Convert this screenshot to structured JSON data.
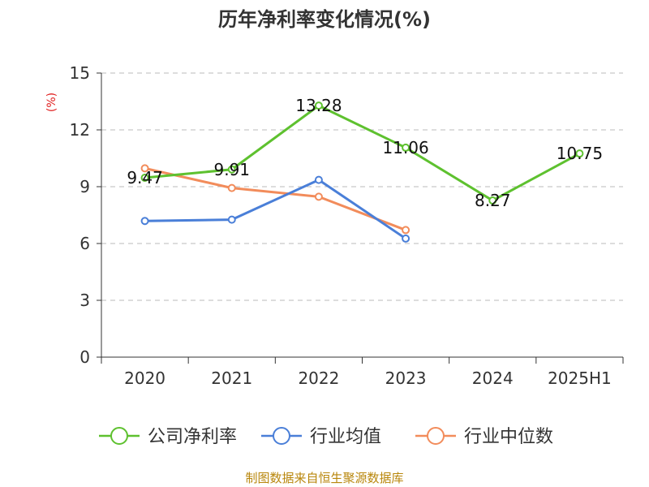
{
  "chart_data": {
    "type": "line",
    "title": "历年净利率变化情况(%)",
    "ylabel": "(%)",
    "xlabel": "",
    "categories": [
      "2020",
      "2021",
      "2022",
      "2023",
      "2024",
      "2025H1"
    ],
    "ylim": [
      0,
      15
    ],
    "yticks": [
      0,
      3,
      6,
      9,
      12,
      15
    ],
    "grid": true,
    "legend_position": "bottom",
    "series": [
      {
        "name": "公司净利率",
        "color": "#5ec12f",
        "show_labels": true,
        "values": [
          9.47,
          9.91,
          13.28,
          11.06,
          8.27,
          10.75
        ],
        "labels": [
          "9.47",
          "9.91",
          "13.28",
          "11.06",
          "8.27",
          "10.75"
        ]
      },
      {
        "name": "行业均值",
        "color": "#4a7fd8",
        "show_labels": false,
        "values": [
          7.19,
          7.26,
          9.36,
          6.26,
          null,
          null
        ]
      },
      {
        "name": "行业中位数",
        "color": "#f28c5b",
        "show_labels": false,
        "values": [
          9.97,
          8.93,
          8.47,
          6.71,
          null,
          null
        ]
      }
    ],
    "source": "制图数据来自恒生聚源数据库"
  }
}
